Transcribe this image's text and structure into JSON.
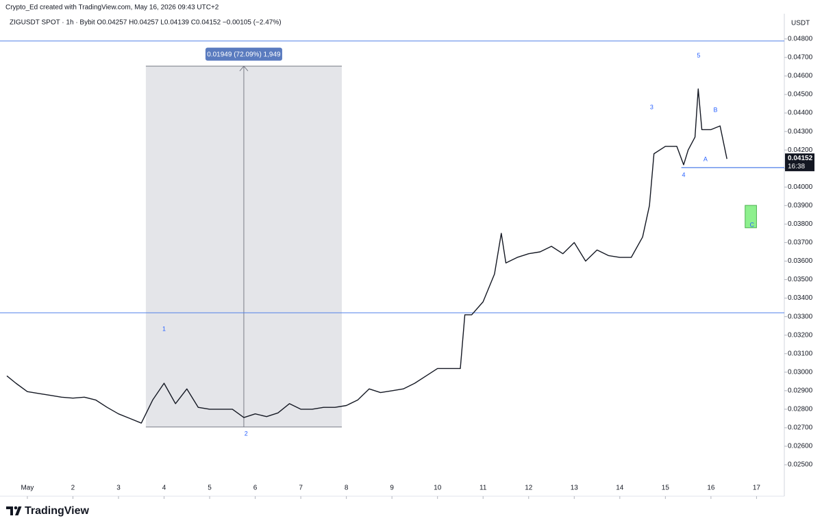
{
  "chart_data": {
    "type": "line",
    "header": "Crypto_Ed created with TradingView.com, May 16, 2026 09:43 UTC+2",
    "legend_text": "ZIGUSDT SPOT · 1h · Bybit  O0.04257 H0.04257 L0.04139 C0.04152 −0.00105 (−2.47%)",
    "y_axis_label": "USDT",
    "brand": "TradingView",
    "x": [
      0.55,
      0.75,
      1.0,
      1.25,
      1.5,
      1.75,
      2.0,
      2.25,
      2.5,
      2.75,
      3.0,
      3.25,
      3.5,
      3.75,
      4.0,
      4.25,
      4.5,
      4.75,
      5.0,
      5.25,
      5.5,
      5.75,
      6.0,
      6.25,
      6.5,
      6.75,
      7.0,
      7.25,
      7.5,
      7.75,
      8.0,
      8.25,
      8.5,
      8.75,
      9.0,
      9.25,
      9.5,
      9.75,
      10.0,
      10.25,
      10.5,
      10.6,
      10.75,
      11.0,
      11.25,
      11.4,
      11.5,
      11.75,
      12.0,
      12.25,
      12.5,
      12.75,
      13.0,
      13.25,
      13.5,
      13.75,
      14.0,
      14.25,
      14.5,
      14.65,
      14.75,
      15.0,
      15.25,
      15.4,
      15.5,
      15.65,
      15.72,
      15.8,
      16.0,
      16.2,
      16.35
    ],
    "series": [
      {
        "name": "ZIGUSDT",
        "color": "#131722",
        "values": [
          0.0298,
          0.0294,
          0.02895,
          0.02885,
          0.02875,
          0.02865,
          0.0286,
          0.02865,
          0.0285,
          0.0281,
          0.02775,
          0.0275,
          0.02725,
          0.0285,
          0.0294,
          0.0283,
          0.0291,
          0.0281,
          0.028,
          0.028,
          0.028,
          0.02755,
          0.02775,
          0.0276,
          0.0278,
          0.0283,
          0.028,
          0.028,
          0.0281,
          0.0281,
          0.0282,
          0.0285,
          0.0291,
          0.0289,
          0.029,
          0.0291,
          0.0294,
          0.0298,
          0.0302,
          0.0302,
          0.0302,
          0.0331,
          0.0331,
          0.0338,
          0.0353,
          0.0375,
          0.0359,
          0.0362,
          0.0364,
          0.0365,
          0.0368,
          0.0364,
          0.037,
          0.036,
          0.0366,
          0.0363,
          0.0362,
          0.0362,
          0.0373,
          0.039,
          0.0418,
          0.0422,
          0.0422,
          0.0412,
          0.042,
          0.0427,
          0.0453,
          0.0431,
          0.0431,
          0.0433,
          0.04152
        ]
      }
    ],
    "xlim": [
      0.52,
      17.58
    ],
    "xticks": [
      {
        "value": 1,
        "label": "May"
      },
      2,
      3,
      4,
      5,
      6,
      7,
      8,
      9,
      10,
      11,
      12,
      13,
      14,
      15,
      16,
      17
    ],
    "ylim": [
      0.0243,
      0.04855
    ],
    "yticks": [
      {
        "value": 0.025,
        "label": "0.02500"
      },
      {
        "value": 0.026,
        "label": "0.02600"
      },
      {
        "value": 0.027,
        "label": "0.02700"
      },
      {
        "value": 0.028,
        "label": "0.02800"
      },
      {
        "value": 0.029,
        "label": "0.02900"
      },
      {
        "value": 0.03,
        "label": "0.03000"
      },
      {
        "value": 0.031,
        "label": "0.03100"
      },
      {
        "value": 0.032,
        "label": "0.03200"
      },
      {
        "value": 0.033,
        "label": "0.03300"
      },
      {
        "value": 0.034,
        "label": "0.03400"
      },
      {
        "value": 0.035,
        "label": "0.03500"
      },
      {
        "value": 0.036,
        "label": "0.03600"
      },
      {
        "value": 0.037,
        "label": "0.03700"
      },
      {
        "value": 0.038,
        "label": "0.03800"
      },
      {
        "value": 0.039,
        "label": "0.03900"
      },
      {
        "value": 0.04,
        "label": "0.04000"
      },
      {
        "value": 0.041,
        "label": "0.04100"
      },
      {
        "value": 0.042,
        "label": "0.04200"
      },
      {
        "value": 0.043,
        "label": "0.04300"
      },
      {
        "value": 0.044,
        "label": "0.04400"
      },
      {
        "value": 0.045,
        "label": "0.04500"
      },
      {
        "value": 0.046,
        "label": "0.04600"
      },
      {
        "value": 0.047,
        "label": "0.04700"
      },
      {
        "value": 0.048,
        "label": "0.04800"
      }
    ],
    "hlines": [
      {
        "value": 0.04789,
        "color": "#4f7fe8"
      },
      {
        "value": 0.03321,
        "color": "#4f7fe8"
      }
    ],
    "support_line": {
      "x": 15.35,
      "value": 0.04105,
      "color": "#4f7fe8"
    },
    "measure": {
      "x": [
        3.6,
        7.9
      ],
      "y": [
        0.02704,
        0.04653
      ],
      "label": "0.01949 (72.09%) 1,949"
    },
    "zone": {
      "x": [
        16.75,
        17.0
      ],
      "y": [
        0.0378,
        0.03901
      ],
      "color": "#8ef08e"
    },
    "last_price": {
      "value": 0.04152,
      "countdown": "16:38"
    },
    "annotations": [
      {
        "text": "1",
        "x": 4.0,
        "y": 0.03232
      },
      {
        "text": "2",
        "x": 5.8,
        "y": 0.02667
      },
      {
        "text": "3",
        "x": 14.7,
        "y": 0.0443
      },
      {
        "text": "4",
        "x": 15.4,
        "y": 0.04064
      },
      {
        "text": "5",
        "x": 15.73,
        "y": 0.04708
      },
      {
        "text": "A",
        "x": 15.88,
        "y": 0.04149
      },
      {
        "text": "B",
        "x": 16.1,
        "y": 0.04415
      },
      {
        "text": "C",
        "x": 16.9,
        "y": 0.03794
      }
    ]
  }
}
